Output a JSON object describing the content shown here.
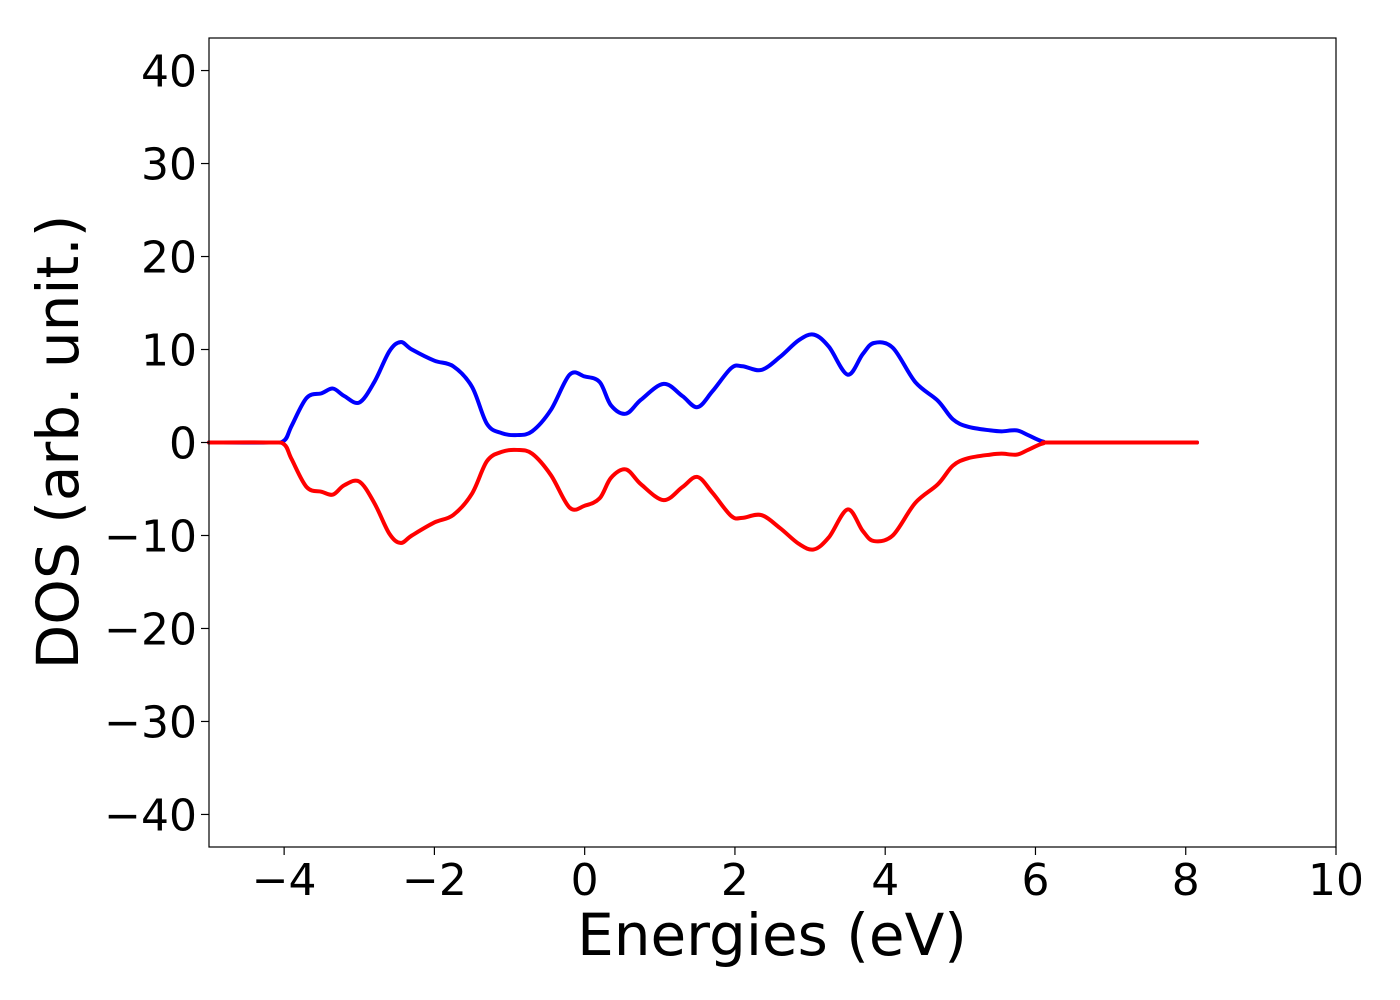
{
  "chart_data": {
    "type": "line",
    "xlabel": "Energies (eV)",
    "ylabel": "DOS (arb. unit.)",
    "xlim": [
      -5,
      10
    ],
    "ylim": [
      -43.5,
      43.5
    ],
    "xticks": [
      -4,
      -2,
      0,
      2,
      4,
      6,
      8,
      10
    ],
    "xtick_labels": [
      "−4",
      "−2",
      "0",
      "2",
      "4",
      "6",
      "8",
      "10"
    ],
    "yticks": [
      40,
      30,
      20,
      10,
      0,
      -10,
      -20,
      -30,
      -40
    ],
    "ytick_labels": [
      "40",
      "30",
      "20",
      "10",
      "0",
      "−10",
      "−20",
      "−30",
      "−40"
    ],
    "grid": false,
    "legend": "none",
    "series": [
      {
        "color": "#0000ff",
        "x": [
          -5.0,
          -4.2,
          -4.0,
          -3.9,
          -3.7,
          -3.5,
          -3.35,
          -3.2,
          -3.0,
          -2.8,
          -2.6,
          -2.45,
          -2.3,
          -2.0,
          -1.75,
          -1.5,
          -1.3,
          -1.1,
          -0.9,
          -0.7,
          -0.45,
          -0.2,
          0.0,
          0.2,
          0.35,
          0.55,
          0.75,
          1.05,
          1.3,
          1.5,
          1.7,
          1.95,
          2.1,
          2.35,
          2.6,
          2.85,
          3.05,
          3.25,
          3.5,
          3.7,
          3.85,
          4.1,
          4.4,
          4.7,
          4.9,
          5.1,
          5.4,
          5.55,
          5.75,
          5.9,
          6.1,
          6.3,
          8.15
        ],
        "y": [
          0,
          0,
          0.2,
          1.8,
          4.8,
          5.3,
          5.8,
          5.0,
          4.3,
          6.5,
          9.8,
          10.8,
          10.0,
          8.8,
          8.2,
          6.0,
          2.0,
          1.0,
          0.8,
          1.2,
          3.5,
          7.3,
          7.1,
          6.5,
          4.0,
          3.1,
          4.6,
          6.3,
          5.0,
          3.8,
          5.5,
          8.0,
          8.2,
          7.8,
          9.2,
          11.0,
          11.6,
          10.3,
          7.3,
          9.5,
          10.7,
          10.2,
          6.5,
          4.5,
          2.5,
          1.7,
          1.3,
          1.2,
          1.3,
          0.8,
          0.1,
          0,
          0
        ]
      },
      {
        "color": "#ff0000",
        "x": [
          -5.0,
          -4.2,
          -4.0,
          -3.9,
          -3.7,
          -3.5,
          -3.35,
          -3.2,
          -3.0,
          -2.8,
          -2.6,
          -2.45,
          -2.3,
          -2.0,
          -1.75,
          -1.5,
          -1.3,
          -1.1,
          -0.9,
          -0.7,
          -0.45,
          -0.2,
          0.0,
          0.2,
          0.35,
          0.55,
          0.75,
          1.05,
          1.3,
          1.5,
          1.7,
          1.95,
          2.1,
          2.35,
          2.6,
          2.85,
          3.05,
          3.25,
          3.5,
          3.7,
          3.85,
          4.1,
          4.4,
          4.7,
          4.9,
          5.1,
          5.4,
          5.55,
          5.75,
          5.9,
          6.1,
          6.3,
          8.15
        ],
        "y": [
          0,
          0,
          -0.2,
          -1.8,
          -4.8,
          -5.3,
          -5.6,
          -4.6,
          -4.2,
          -6.5,
          -9.8,
          -10.8,
          -10.0,
          -8.6,
          -7.8,
          -5.5,
          -2.0,
          -1.0,
          -0.8,
          -1.2,
          -3.5,
          -7.0,
          -6.8,
          -6.0,
          -3.8,
          -2.9,
          -4.5,
          -6.2,
          -4.8,
          -3.7,
          -5.4,
          -7.9,
          -8.1,
          -7.8,
          -9.2,
          -10.9,
          -11.5,
          -10.2,
          -7.2,
          -9.5,
          -10.6,
          -10.0,
          -6.5,
          -4.5,
          -2.5,
          -1.7,
          -1.3,
          -1.2,
          -1.3,
          -0.8,
          -0.1,
          0,
          0
        ]
      }
    ]
  }
}
